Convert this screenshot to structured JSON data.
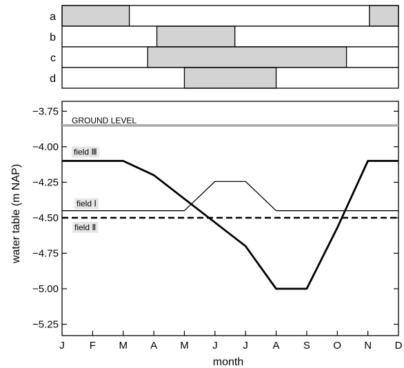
{
  "chart_data": {
    "type": "line",
    "xlabel": "month",
    "ylabel": "water table (m NAP)",
    "months": [
      "J",
      "F",
      "M",
      "A",
      "M",
      "J",
      "J",
      "A",
      "S",
      "O",
      "N",
      "D"
    ],
    "ylim": [
      -5.33,
      -3.68
    ],
    "yticks": [
      "-3.75",
      "-4.00",
      "-4.25",
      "-4.50",
      "-4.75",
      "-5.00",
      "-5.25"
    ],
    "ground_level": {
      "label": "GROUND LEVEL",
      "value": -3.85,
      "color": "#a8a8a8"
    },
    "series": [
      {
        "name": "field Ⅰ",
        "style": "thin-solid",
        "x": [
          0,
          4,
          5,
          6,
          7,
          11
        ],
        "y": [
          -4.45,
          -4.45,
          -4.245,
          -4.245,
          -4.45,
          -4.45
        ]
      },
      {
        "name": "field Ⅱ",
        "style": "dashed",
        "x": [
          0,
          11
        ],
        "y": [
          -4.5,
          -4.5
        ]
      },
      {
        "name": "field Ⅲ",
        "style": "thick-solid",
        "x": [
          0,
          2,
          3,
          6,
          7,
          8,
          9,
          10,
          11
        ],
        "y": [
          -4.1,
          -4.1,
          -4.2,
          -4.7,
          -5.0,
          -5.0,
          -4.57,
          -4.1,
          -4.1
        ]
      }
    ],
    "label_bg_color": "#e6e6e6",
    "period_fill_color": "#d3d3d3",
    "periods": [
      {
        "label": "a",
        "spans": [
          [
            0,
            2.2
          ],
          [
            10.05,
            11
          ]
        ]
      },
      {
        "label": "b",
        "spans": [
          [
            3.1,
            5.65
          ]
        ]
      },
      {
        "label": "c",
        "spans": [
          [
            2.8,
            9.3
          ]
        ]
      },
      {
        "label": "d",
        "spans": [
          [
            4.0,
            7.0
          ]
        ]
      }
    ]
  }
}
